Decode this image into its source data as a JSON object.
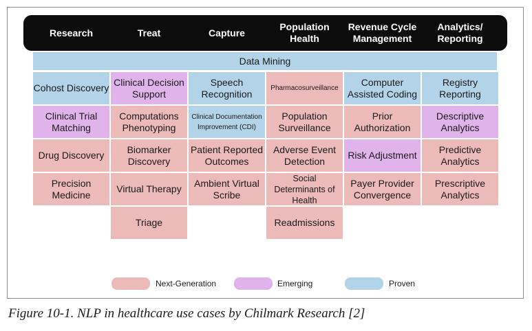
{
  "columns": [
    {
      "label": "Research"
    },
    {
      "label": "Treat"
    },
    {
      "label": "Capture"
    },
    {
      "label": "Population Health"
    },
    {
      "label": "Revenue Cycle Management"
    },
    {
      "label": "Analytics/ Reporting"
    }
  ],
  "banner": {
    "label": "Data Mining",
    "category": "proven"
  },
  "cells": {
    "r1": [
      {
        "label": "Cohost Discovery",
        "category": "proven"
      },
      {
        "label": "Clinical Decision Support",
        "category": "emerging"
      },
      {
        "label": "Speech Recognition",
        "category": "proven"
      },
      {
        "label": "Pharmacosurveillance",
        "category": "nextgen"
      },
      {
        "label": "Computer Assisted Coding",
        "category": "proven"
      },
      {
        "label": "Registry Reporting",
        "category": "proven"
      }
    ],
    "r2": [
      {
        "label": "Clinical Trial Matching",
        "category": "emerging"
      },
      {
        "label": "Computations Phenotyping",
        "category": "nextgen"
      },
      {
        "label": "Clinical Documentation Improvement (CDI)",
        "category": "proven"
      },
      {
        "label": "Population Surveillance",
        "category": "nextgen"
      },
      {
        "label": "Prior Authorization",
        "category": "nextgen"
      },
      {
        "label": "Descriptive Analytics",
        "category": "emerging"
      }
    ],
    "r3": [
      {
        "label": "Drug Discovery",
        "category": "nextgen"
      },
      {
        "label": "Biomarker Discovery",
        "category": "nextgen"
      },
      {
        "label": "Patient Reported Outcomes",
        "category": "nextgen"
      },
      {
        "label": "Adverse Event Detection",
        "category": "nextgen"
      },
      {
        "label": "Risk Adjustment",
        "category": "emerging"
      },
      {
        "label": "Predictive Analytics",
        "category": "nextgen"
      }
    ],
    "r4": [
      {
        "label": "Precision Medicine",
        "category": "nextgen"
      },
      {
        "label": "Virtual Therapy",
        "category": "nextgen"
      },
      {
        "label": "Ambient Virtual Scribe",
        "category": "nextgen"
      },
      {
        "label": "Social Determinants of Health",
        "category": "nextgen"
      },
      {
        "label": "Payer Provider Convergence",
        "category": "nextgen"
      },
      {
        "label": "Prescriptive Analytics",
        "category": "nextgen"
      }
    ],
    "r5": [
      {
        "label": "Triage",
        "category": "nextgen"
      },
      {
        "label": "Readmissions",
        "category": "nextgen"
      }
    ]
  },
  "legend": [
    {
      "label": "Next-Generation",
      "color": "#edbaba"
    },
    {
      "label": "Emerging",
      "color": "#e0b4ea"
    },
    {
      "label": "Proven",
      "color": "#b3d3e8"
    }
  ],
  "caption": "Figure 10-1. NLP in healthcare use cases by Chilmark Research [2]"
}
